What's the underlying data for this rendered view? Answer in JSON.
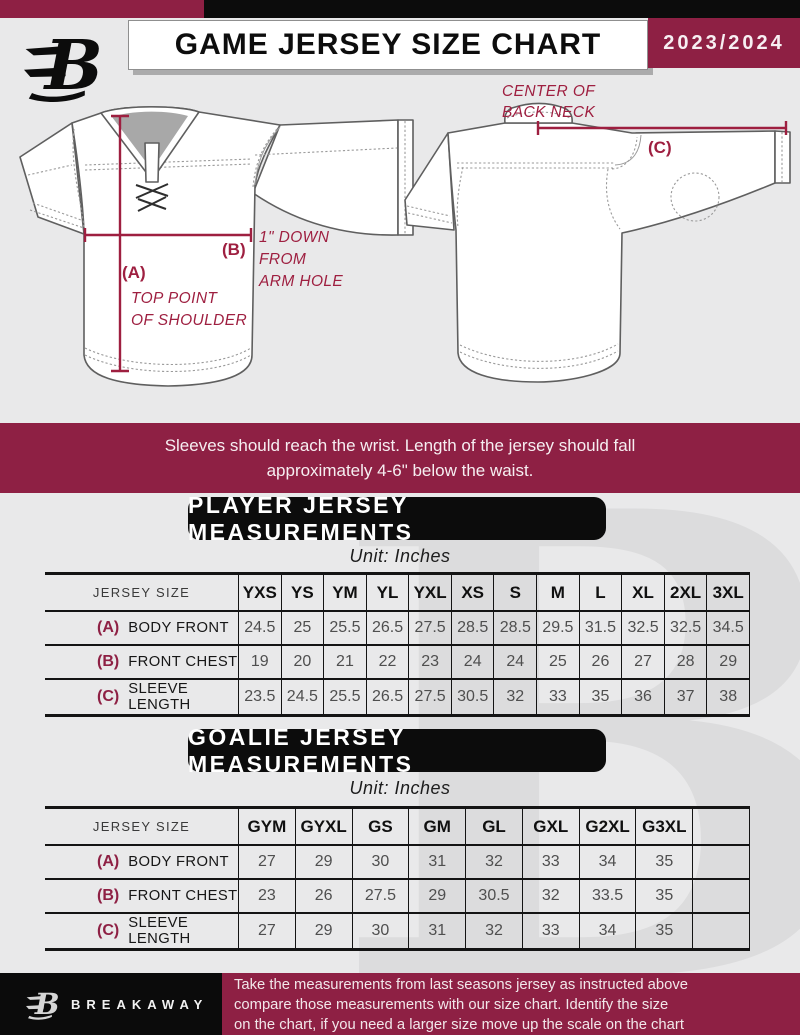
{
  "colors": {
    "maroon": "#8e2044",
    "black": "#0c0c0c",
    "page_bg": "#e9e9ea"
  },
  "header": {
    "title": "GAME JERSEY SIZE CHART",
    "season": "2023/2024"
  },
  "watermark_letter": "B",
  "diagram": {
    "front": {
      "a_tag": "(A)",
      "a_label_line1": "TOP POINT",
      "a_label_line2": "OF SHOULDER",
      "b_tag": "(B)",
      "b_label_line1": "1\" DOWN",
      "b_label_line2": "FROM",
      "b_label_line3": "ARM HOLE"
    },
    "back": {
      "c_tag": "(C)",
      "c_label_line1": "CENTER OF",
      "c_label_line2": "BACK NECK"
    }
  },
  "notice": {
    "line1": "Sleeves should reach the wrist. Length of the jersey should fall",
    "line2": "approximately 4-6\" below the waist."
  },
  "player_table": {
    "title": "PLAYER JERSEY MEASUREMENTS",
    "unit": "Unit: Inches",
    "corner_label": "JERSEY SIZE",
    "sizes": [
      "YXS",
      "YS",
      "YM",
      "YL",
      "YXL",
      "XS",
      "S",
      "M",
      "L",
      "XL",
      "2XL",
      "3XL"
    ],
    "rows": [
      {
        "tag": "(A)",
        "label": "BODY FRONT",
        "values": [
          "24.5",
          "25",
          "25.5",
          "26.5",
          "27.5",
          "28.5",
          "28.5",
          "29.5",
          "31.5",
          "32.5",
          "32.5",
          "34.5"
        ]
      },
      {
        "tag": "(B)",
        "label": "FRONT CHEST",
        "values": [
          "19",
          "20",
          "21",
          "22",
          "23",
          "24",
          "24",
          "25",
          "26",
          "27",
          "28",
          "29"
        ]
      },
      {
        "tag": "(C)",
        "label": "SLEEVE LENGTH",
        "values": [
          "23.5",
          "24.5",
          "25.5",
          "26.5",
          "27.5",
          "30.5",
          "32",
          "33",
          "35",
          "36",
          "37",
          "38"
        ]
      }
    ]
  },
  "goalie_table": {
    "title": "GOALIE JERSEY MEASUREMENTS",
    "unit": "Unit: Inches",
    "corner_label": "JERSEY SIZE",
    "sizes": [
      "GYM",
      "GYXL",
      "GS",
      "GM",
      "GL",
      "GXL",
      "G2XL",
      "G3XL",
      ""
    ],
    "rows": [
      {
        "tag": "(A)",
        "label": "BODY FRONT",
        "values": [
          "27",
          "29",
          "30",
          "31",
          "32",
          "33",
          "34",
          "35",
          ""
        ]
      },
      {
        "tag": "(B)",
        "label": "FRONT CHEST",
        "values": [
          "23",
          "26",
          "27.5",
          "29",
          "30.5",
          "32",
          "33.5",
          "35",
          ""
        ]
      },
      {
        "tag": "(C)",
        "label": "SLEEVE LENGTH",
        "values": [
          "27",
          "29",
          "30",
          "31",
          "32",
          "33",
          "34",
          "35",
          ""
        ]
      }
    ]
  },
  "footer": {
    "brand": "BREAKAWAY",
    "line1": "Take the measurements from last seasons jersey as instructed above",
    "line2": "compare those measurements  with our size chart. Identify the size",
    "line3": "on the chart, if you need a larger size move up the scale on the chart"
  }
}
